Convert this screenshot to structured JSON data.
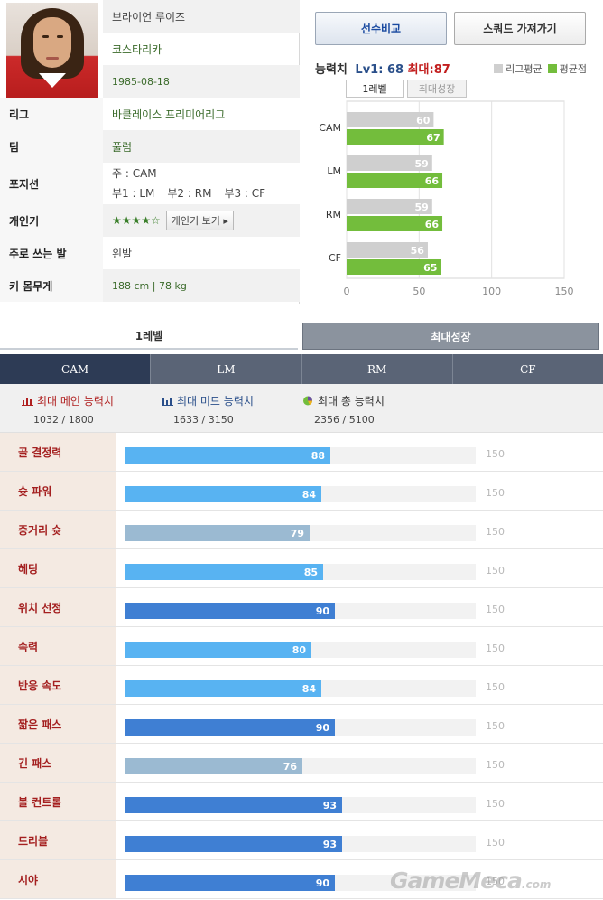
{
  "player": {
    "name": "브라이언 루이즈",
    "nation": "코스타리카",
    "birth": "1985-08-18",
    "info": [
      {
        "label": "리그",
        "value": "바클레이스 프리미어리그"
      },
      {
        "label": "팀",
        "value": "풀럼"
      },
      {
        "label": "포지션",
        "main": "주 : CAM",
        "subs": [
          "부1 : LM",
          "부2 : RM",
          "부3 : CF"
        ]
      },
      {
        "label": "개인기",
        "stars": "★★★★☆",
        "button": "개인기 보기 ▸"
      },
      {
        "label": "주로 쓰는 발",
        "value": "왼발"
      },
      {
        "label": "키 몸무게",
        "value": "188 cm  |  78 kg"
      }
    ]
  },
  "buttons": {
    "compare": "선수비교",
    "squad": "스쿼드 가져가기"
  },
  "ability": {
    "label": "능력치",
    "lv1": "Lv1: 68",
    "max": "최대:87"
  },
  "legend": {
    "league": "리그평균",
    "avg": "평균점"
  },
  "chart_tabs": {
    "level1": "1레벨",
    "max_growth": "최대성장"
  },
  "colors": {
    "league": "#cfcfcf",
    "player": "#73bd3c",
    "bar_blue": "#58b3f2",
    "bar_gray": "#9bbad2",
    "bar_dark": "#3f7fd3"
  },
  "chart_data": {
    "type": "bar",
    "orientation": "horizontal",
    "categories": [
      "CAM",
      "LM",
      "RM",
      "CF"
    ],
    "series": [
      {
        "name": "리그평균",
        "values": [
          60,
          59,
          59,
          56
        ]
      },
      {
        "name": "평균점",
        "values": [
          67,
          66,
          66,
          65
        ]
      }
    ],
    "xlim": [
      0,
      150
    ],
    "xticks": [
      "0",
      "50",
      "100",
      "150"
    ],
    "grid": true
  },
  "level_tabs": {
    "level1": "1레벨",
    "max_growth": "최대성장"
  },
  "positions": [
    "CAM",
    "LM",
    "RM",
    "CF"
  ],
  "summary": {
    "main": {
      "title": "최대 메인 능력치",
      "value": "1032 / 1800"
    },
    "mid": {
      "title": "최대 미드 능력치",
      "value": "1633 / 3150"
    },
    "total": {
      "title": "최대 총 능력치",
      "value": "2356 / 5100"
    }
  },
  "stats_max": "150",
  "stats": [
    {
      "name": "골 결정력",
      "value": 88,
      "tier": "blue"
    },
    {
      "name": "슛 파워",
      "value": 84,
      "tier": "blue"
    },
    {
      "name": "중거리 슛",
      "value": 79,
      "tier": "gray"
    },
    {
      "name": "헤딩",
      "value": 85,
      "tier": "blue"
    },
    {
      "name": "위치 선정",
      "value": 90,
      "tier": "dark"
    },
    {
      "name": "속력",
      "value": 80,
      "tier": "blue"
    },
    {
      "name": "반응 속도",
      "value": 84,
      "tier": "blue"
    },
    {
      "name": "짧은 패스",
      "value": 90,
      "tier": "dark"
    },
    {
      "name": "긴 패스",
      "value": 76,
      "tier": "gray"
    },
    {
      "name": "볼 컨트롤",
      "value": 93,
      "tier": "dark"
    },
    {
      "name": "드리블",
      "value": 93,
      "tier": "dark"
    },
    {
      "name": "시야",
      "value": 90,
      "tier": "dark"
    }
  ],
  "watermark": {
    "text": "GameMeca",
    "suffix": ".com"
  }
}
